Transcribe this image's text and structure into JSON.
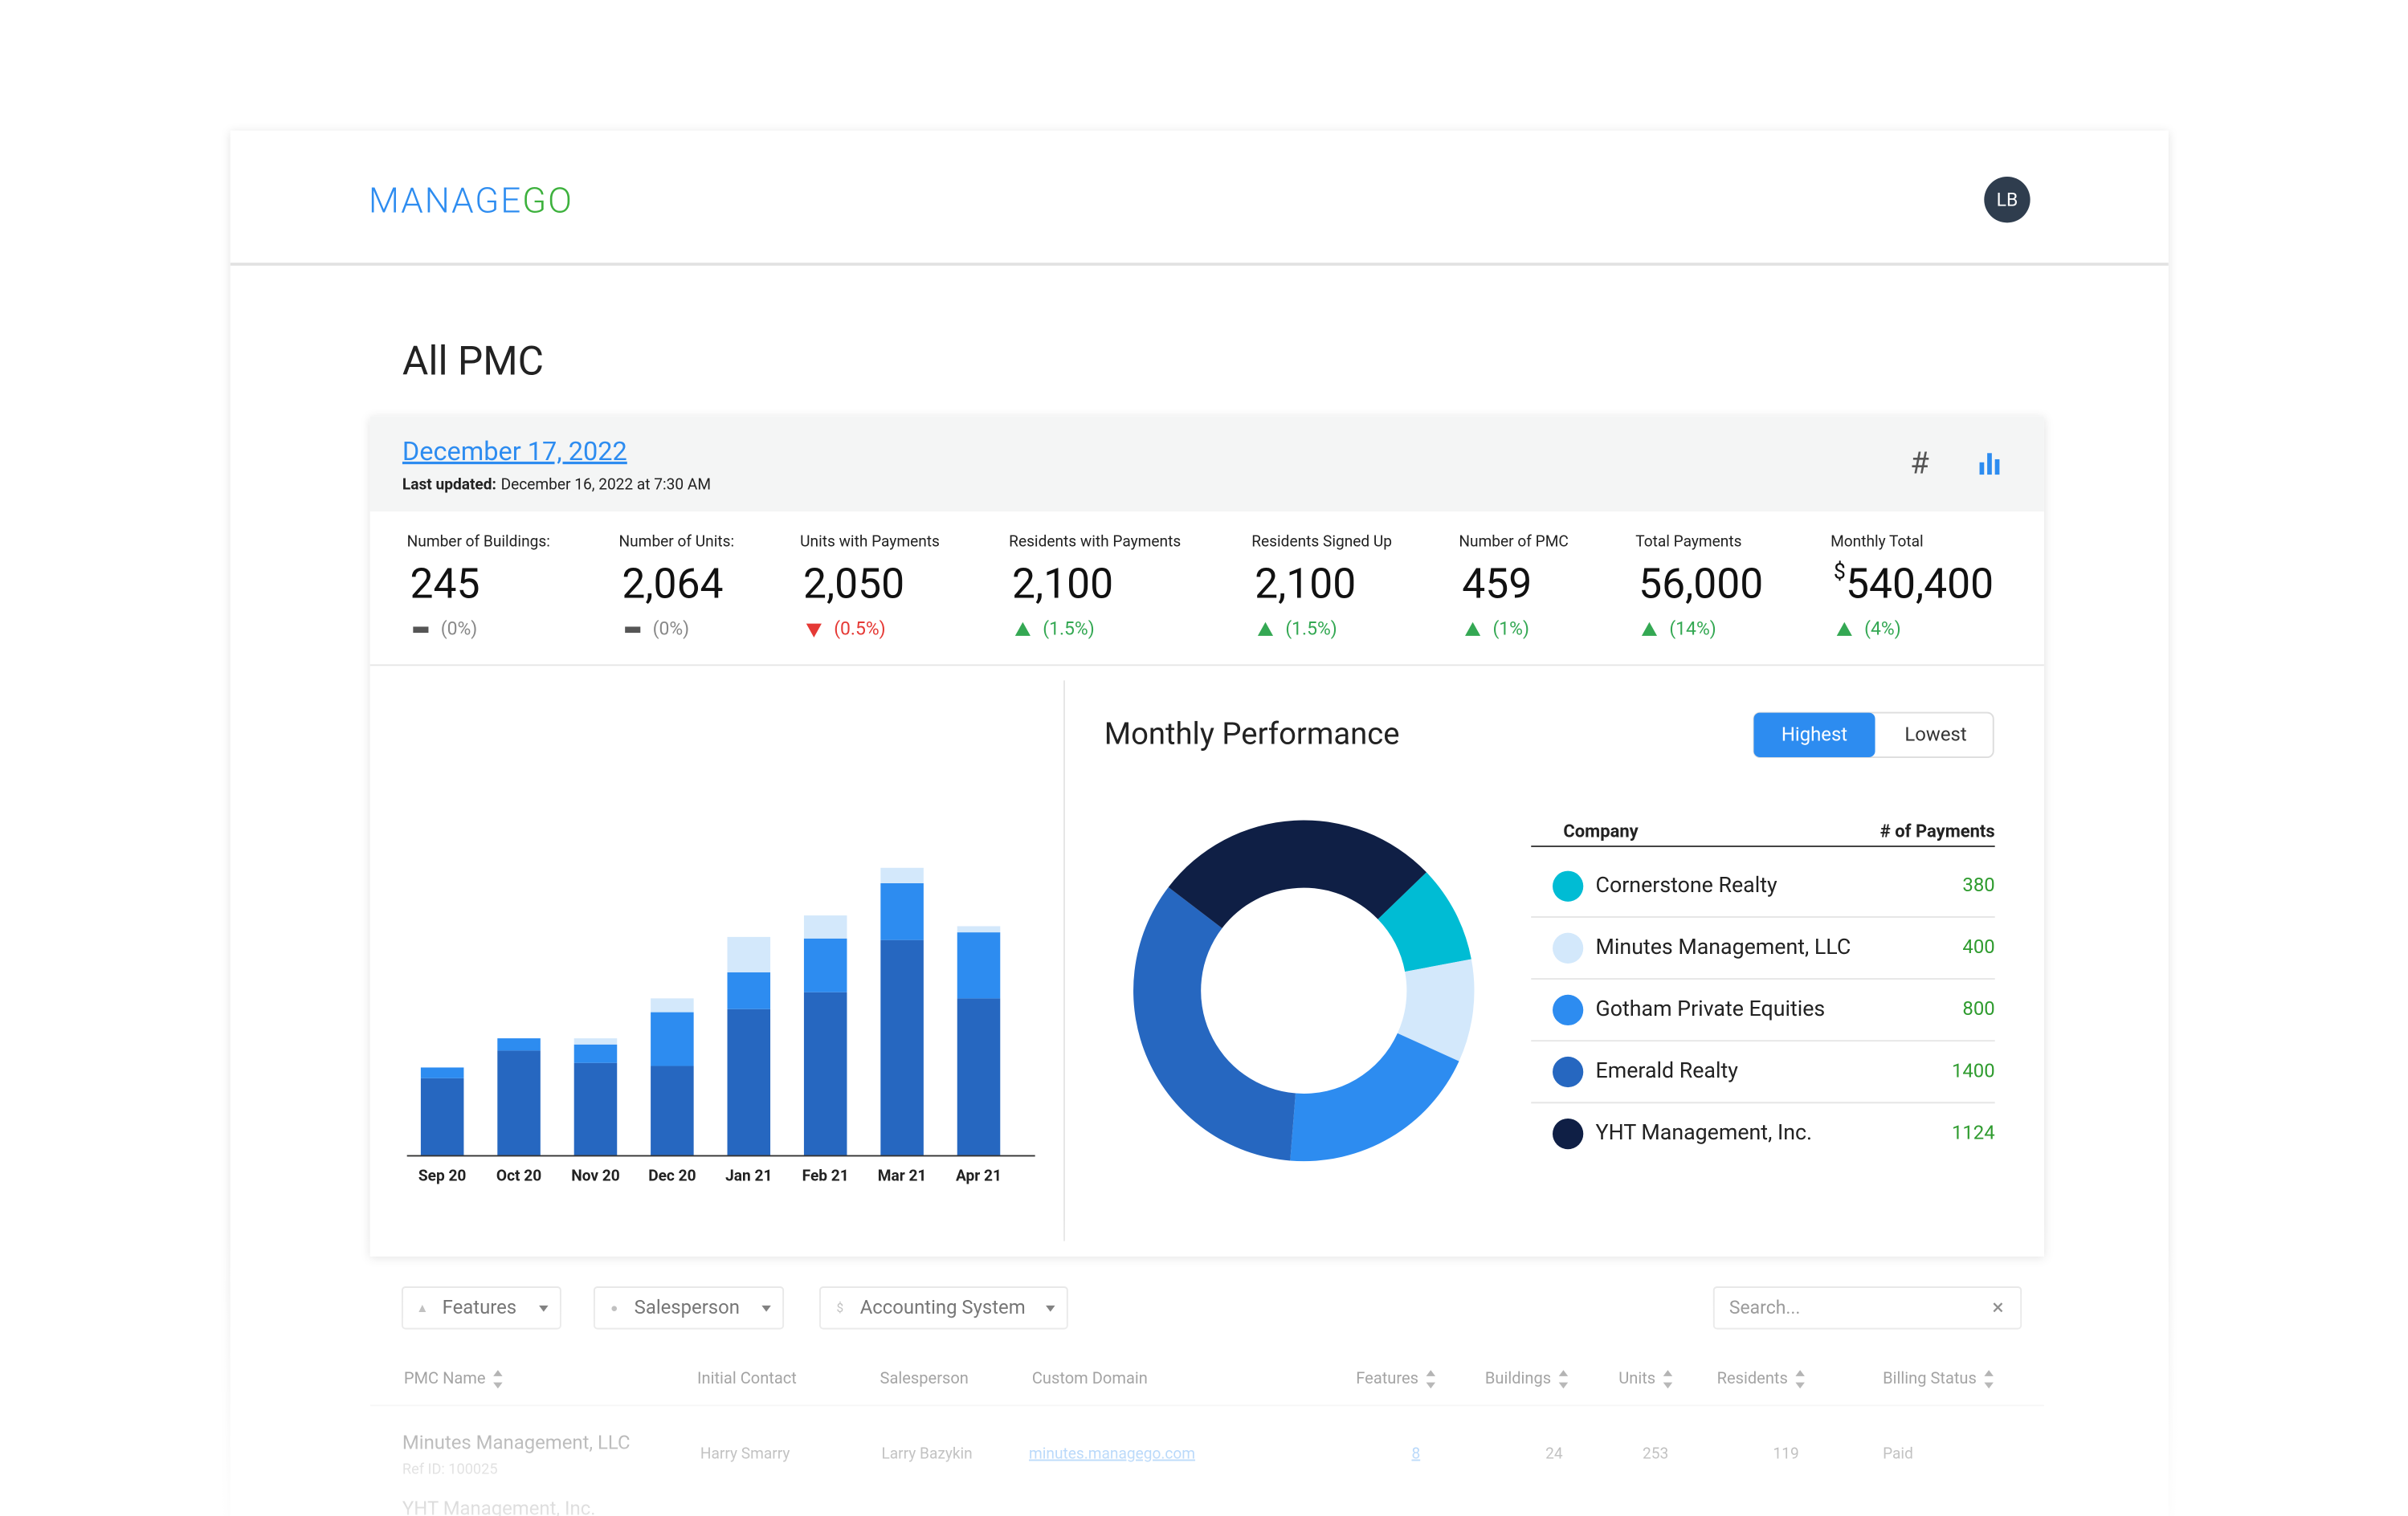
{
  "header": {
    "logo": [
      "MANAGE",
      "GO"
    ],
    "avatar": "LB"
  },
  "page_title": "All PMC",
  "summary": {
    "date": "December 17, 2022",
    "last_updated_label": "Last updated:",
    "last_updated": "December 16, 2022 at 7:30 AM",
    "stats": [
      {
        "label": "Number of Buildings:",
        "value": "245",
        "change": "(0%)",
        "trend": "flat"
      },
      {
        "label": "Number of Units:",
        "value": "2,064",
        "change": "(0%)",
        "trend": "flat"
      },
      {
        "label": "Units with Payments",
        "value": "2,050",
        "change": "(0.5%)",
        "trend": "down"
      },
      {
        "label": "Residents with Payments",
        "value": "2,100",
        "change": "(1.5%)",
        "trend": "up"
      },
      {
        "label": "Residents Signed Up",
        "value": "2,100",
        "change": "(1.5%)",
        "trend": "up"
      },
      {
        "label": "Number of PMC",
        "value": "459",
        "change": "(1%)",
        "trend": "up"
      },
      {
        "label": "Total Payments",
        "value": "56,000",
        "change": "(14%)",
        "trend": "up"
      },
      {
        "label": "Monthly Total",
        "currency": "$",
        "value": "540,400",
        "change": "(4%)",
        "trend": "up"
      }
    ]
  },
  "chart_data": [
    {
      "type": "stacked_bar",
      "categories": [
        "Sep 20",
        "Oct 20",
        "Nov 20",
        "Dec 20",
        "Jan 21",
        "Feb 21",
        "Mar 21",
        "Apr 21"
      ],
      "series": [
        {
          "color": "#2667c0",
          "values": [
            50,
            68,
            60,
            58,
            95,
            106,
            140,
            102
          ]
        },
        {
          "color": "#2d8cf0",
          "values": [
            7,
            8,
            12,
            35,
            24,
            35,
            37,
            43
          ]
        },
        {
          "color": "#d3e8fb",
          "values": [
            0,
            0,
            4,
            9,
            23,
            15,
            10,
            4
          ]
        }
      ],
      "ylim": [
        0,
        200
      ]
    },
    {
      "type": "donut",
      "title": "Monthly Performance",
      "buttons": [
        "Highest",
        "Lowest"
      ],
      "active_button": 0,
      "columns": [
        "Company",
        "# of Payments"
      ],
      "categories": [
        "Cornerstone Realty",
        "Minutes Management, LLC",
        "Gotham Private Equities",
        "Emerald Realty",
        "YHT Management, Inc."
      ],
      "values": [
        380,
        400,
        800,
        1400,
        1124
      ],
      "colors": [
        "#00bcd4",
        "#d3e8fb",
        "#2d8cf0",
        "#2667c0",
        "#0f1f45"
      ]
    }
  ],
  "table": {
    "filters": [
      "Features",
      "Salesperson",
      "Accounting System"
    ],
    "search": "Search...",
    "columns": [
      "PMC Name",
      "Initial Contact",
      "Salesperson",
      "Custom Domain",
      "Features",
      "Buildings",
      "Units",
      "Residents",
      "Billing Status"
    ],
    "rows": [
      {
        "name": "Minutes Management, LLC",
        "ref": "Ref ID: 100025",
        "cells": [
          "Harry Smarry",
          "Larry Bazykin",
          "minutes.managego.com",
          "8",
          "24",
          "253",
          "119",
          "Paid"
        ]
      },
      {
        "name": "YHT Management, Inc."
      }
    ]
  }
}
